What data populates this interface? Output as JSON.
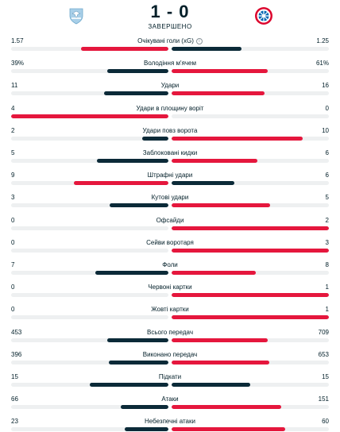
{
  "match": {
    "score": "1 - 0",
    "status": "ЗАВЕРШЕНО",
    "home_logo_icon": "lazio-crest-icon",
    "away_logo_icon": "bayern-crest-icon"
  },
  "colors": {
    "winner": "#e5173d",
    "loser": "#0b2a38",
    "track": "#eef0f1"
  },
  "stats": [
    {
      "label": "Очікувані голи (xG)",
      "home": "1.57",
      "away": "1.25",
      "home_share": 0.557,
      "away_share": 0.443,
      "info": true
    },
    {
      "label": "Володіння м'ячем",
      "home": "39%",
      "away": "61%",
      "home_share": 0.39,
      "away_share": 0.61
    },
    {
      "label": "Удари",
      "home": "11",
      "away": "16",
      "home_share": 0.407,
      "away_share": 0.593
    },
    {
      "label": "Удари в площину воріт",
      "home": "4",
      "away": "0",
      "home_share": 1.0,
      "away_share": 0.0
    },
    {
      "label": "Удари повз ворота",
      "home": "2",
      "away": "10",
      "home_share": 0.167,
      "away_share": 0.833
    },
    {
      "label": "Заблоковані кидки",
      "home": "5",
      "away": "6",
      "home_share": 0.455,
      "away_share": 0.545
    },
    {
      "label": "Штрафні удари",
      "home": "9",
      "away": "6",
      "home_share": 0.6,
      "away_share": 0.4
    },
    {
      "label": "Кутові удари",
      "home": "3",
      "away": "5",
      "home_share": 0.375,
      "away_share": 0.625
    },
    {
      "label": "Офсайди",
      "home": "0",
      "away": "2",
      "home_share": 0.0,
      "away_share": 1.0
    },
    {
      "label": "Сейви воротаря",
      "home": "0",
      "away": "3",
      "home_share": 0.0,
      "away_share": 1.0
    },
    {
      "label": "Фоли",
      "home": "7",
      "away": "8",
      "home_share": 0.467,
      "away_share": 0.533
    },
    {
      "label": "Червоні картки",
      "home": "0",
      "away": "1",
      "home_share": 0.0,
      "away_share": 1.0
    },
    {
      "label": "Жовті картки",
      "home": "0",
      "away": "1",
      "home_share": 0.0,
      "away_share": 1.0
    },
    {
      "label": "Всього передач",
      "home": "453",
      "away": "709",
      "home_share": 0.39,
      "away_share": 0.61
    },
    {
      "label": "Виконано передач",
      "home": "396",
      "away": "653",
      "home_share": 0.377,
      "away_share": 0.623
    },
    {
      "label": "Підкати",
      "home": "15",
      "away": "15",
      "home_share": 0.5,
      "away_share": 0.5
    },
    {
      "label": "Атаки",
      "home": "66",
      "away": "151",
      "home_share": 0.304,
      "away_share": 0.696
    },
    {
      "label": "Небезпечні атаки",
      "home": "23",
      "away": "60",
      "home_share": 0.277,
      "away_share": 0.723
    }
  ]
}
